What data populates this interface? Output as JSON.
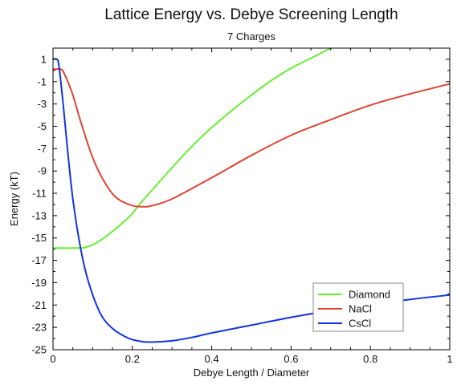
{
  "chart_data": {
    "type": "line",
    "title": "Lattice Energy vs. Debye Screening Length",
    "subtitle": "7 Charges",
    "xlabel": "Debye Length / Diameter",
    "ylabel": "Energy (kT)",
    "xlim": [
      0,
      1
    ],
    "ylim": [
      -25,
      2
    ],
    "xticks": [
      0,
      0.2,
      0.4,
      0.6,
      0.8,
      1
    ],
    "xtick_labels": [
      "0",
      "0.2",
      "0.4",
      "0.6",
      "0.8",
      "1"
    ],
    "yticks": [
      1,
      -1,
      -3,
      -5,
      -7,
      -9,
      -11,
      -13,
      -15,
      -17,
      -19,
      -21,
      -23,
      -25
    ],
    "ytick_labels": [
      "1",
      "-1",
      "-3",
      "-5",
      "-7",
      "-9",
      "-11",
      "-13",
      "-15",
      "-17",
      "-19",
      "-21",
      "-23",
      "-25"
    ],
    "grid": false,
    "legend_position": "bottom-right",
    "series": [
      {
        "name": "Diamond",
        "color": "#66ee33",
        "x": [
          0,
          0.05,
          0.08,
          0.1,
          0.12,
          0.15,
          0.18,
          0.2,
          0.22,
          0.25,
          0.3,
          0.35,
          0.4,
          0.45,
          0.5,
          0.55,
          0.6,
          0.65,
          0.7
        ],
        "y": [
          -15.9,
          -15.9,
          -15.85,
          -15.6,
          -15.2,
          -14.4,
          -13.5,
          -12.8,
          -11.9,
          -10.7,
          -8.7,
          -6.8,
          -5.1,
          -3.6,
          -2.2,
          -0.9,
          0.2,
          1.1,
          2.0
        ]
      },
      {
        "name": "NaCl",
        "color": "#dd4433",
        "x": [
          0,
          0.02,
          0.03,
          0.05,
          0.07,
          0.1,
          0.13,
          0.16,
          0.2,
          0.23,
          0.25,
          0.3,
          0.4,
          0.5,
          0.6,
          0.7,
          0.8,
          0.9,
          1.0
        ],
        "y": [
          0.1,
          0.1,
          -0.4,
          -2.2,
          -4.6,
          -7.8,
          -10.0,
          -11.4,
          -12.1,
          -12.2,
          -12.1,
          -11.5,
          -9.6,
          -7.6,
          -5.8,
          -4.4,
          -3.1,
          -2.1,
          -1.2
        ]
      },
      {
        "name": "CsCl",
        "color": "#1133dd",
        "x": [
          0,
          0.01,
          0.015,
          0.025,
          0.035,
          0.05,
          0.07,
          0.09,
          0.12,
          0.15,
          0.18,
          0.2,
          0.23,
          0.26,
          0.3,
          0.35,
          0.4,
          0.5,
          0.6,
          0.7,
          0.8,
          0.9,
          1.0
        ],
        "y": [
          1.0,
          1.0,
          0.4,
          -2.8,
          -6.5,
          -11.5,
          -16.0,
          -19.0,
          -21.8,
          -23.1,
          -23.8,
          -24.1,
          -24.3,
          -24.3,
          -24.2,
          -23.9,
          -23.5,
          -22.8,
          -22.1,
          -21.5,
          -21.0,
          -20.5,
          -20.1
        ]
      }
    ]
  }
}
